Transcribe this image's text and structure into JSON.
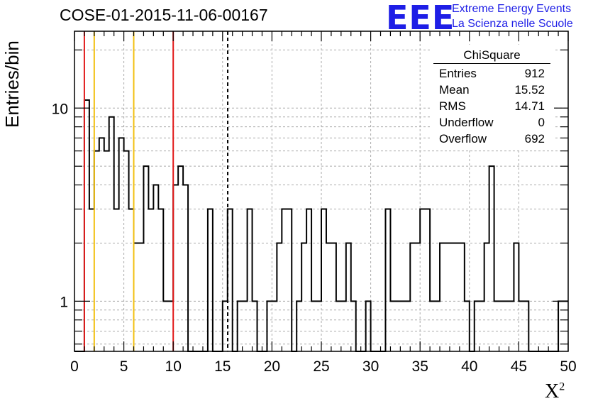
{
  "header": {
    "title": "COSE-01-2015-11-06-00167",
    "logo_text": "EEE",
    "logo_line1": "Extreme Energy Events",
    "logo_line2": "La Scienza nelle Scuole"
  },
  "stats_box": {
    "title": "ChiSquare",
    "rows": [
      {
        "label": "Entries",
        "value": "912"
      },
      {
        "label": "Mean",
        "value": "15.52"
      },
      {
        "label": "RMS",
        "value": "14.71"
      },
      {
        "label": "Underflow",
        "value": "0"
      },
      {
        "label": "Overflow",
        "value": "692"
      }
    ]
  },
  "colors": {
    "red_line": "#e21b1b",
    "yellow_line": "#f2c010",
    "hist": "#000000",
    "grid": "#aaaaaa",
    "logo": "#1e1ee6"
  },
  "chart_data": {
    "type": "bar",
    "style": "step-histogram",
    "xlabel": "X",
    "xlabel_sup": "2",
    "ylabel": "Entries/bin",
    "xlim": [
      0,
      50
    ],
    "ylim": [
      0.55,
      25
    ],
    "y_scale": "log",
    "grid": true,
    "legend": "stats-box-top-right",
    "bin_width": 0.5,
    "x_ticks": [
      "0",
      "5",
      "10",
      "15",
      "20",
      "25",
      "30",
      "35",
      "40",
      "45",
      "50"
    ],
    "y_ticks": [
      {
        "value": 1,
        "label": "1"
      },
      {
        "value": 10,
        "label": "10"
      }
    ],
    "values": [
      0,
      0,
      11,
      3,
      6,
      7,
      6,
      9,
      3,
      7,
      6,
      3,
      2,
      2,
      5,
      3,
      4,
      3,
      1,
      1,
      4,
      5,
      4,
      0,
      0,
      0,
      0,
      3,
      0,
      0,
      1,
      3,
      0,
      1,
      1,
      3,
      1,
      0,
      0,
      1,
      1,
      2,
      3,
      3,
      0,
      1,
      2,
      3,
      1,
      1,
      3,
      2,
      2,
      1,
      1,
      2,
      1,
      0,
      0,
      1,
      0,
      0,
      0,
      3,
      1,
      1,
      1,
      1,
      2,
      2,
      3,
      3,
      1,
      1,
      2,
      2,
      2,
      2,
      2,
      1,
      0,
      1,
      1,
      2,
      5,
      1,
      1,
      1,
      1,
      2,
      1,
      1,
      0,
      0,
      0,
      0,
      0,
      0,
      1,
      1
    ],
    "vlines": [
      {
        "x": 1.0,
        "color": "red",
        "style": "solid"
      },
      {
        "x": 2.0,
        "color": "yellow",
        "style": "solid"
      },
      {
        "x": 6.0,
        "color": "yellow",
        "style": "solid"
      },
      {
        "x": 10.0,
        "color": "red",
        "style": "solid"
      },
      {
        "x": 15.52,
        "color": "black",
        "style": "dashed"
      }
    ]
  }
}
